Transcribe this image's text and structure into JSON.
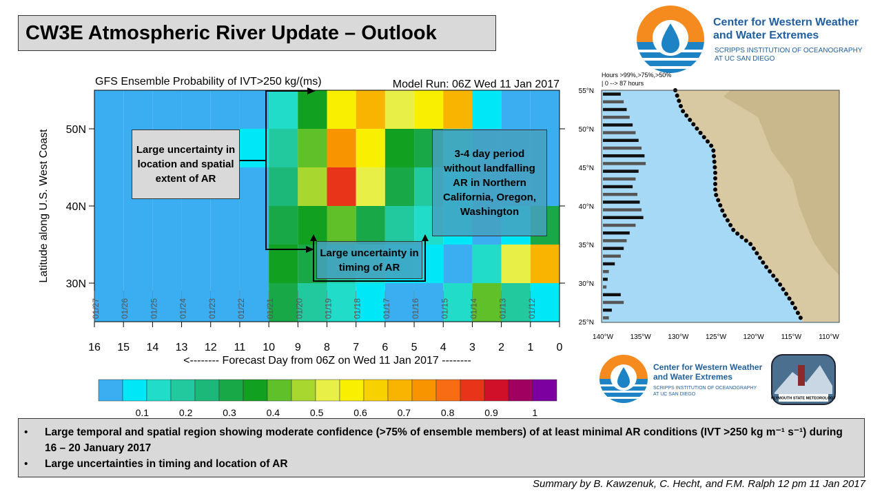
{
  "header": {
    "title": "CW3E Atmospheric River Update – Outlook"
  },
  "logo": {
    "name_line1": "Center for Western Weather",
    "name_line2": "and Water Extremes",
    "sub_line1": "SCRIPPS INSTITUTION OF OCEANOGRAPHY",
    "sub_line2": "AT UC SAN DIEGO"
  },
  "logo2": {
    "name_line1": "Center for Western Weather",
    "name_line2": "and Water Extremes",
    "sub_line1": "SCRIPPS INSTITUTION OF OCEANOGRAPHY",
    "sub_line2": "AT UC SAN DIEGO"
  },
  "psu_logo": {
    "text": "PLYMOUTH STATE METEOROLOGY"
  },
  "chart_data": {
    "type": "heatmap",
    "title": "GFS Ensemble Probability of IVT>250 kg/(ms)",
    "subtitle": "Model Run: 06Z Wed 11 Jan 2017",
    "x_label": "<-------- Forecast Day from 06Z on Wed 11 Jan 2017 --------",
    "y_label": "Latitude along U.S. West Coast",
    "xlim": [
      16,
      0
    ],
    "xticks": [
      16,
      15,
      14,
      13,
      12,
      11,
      10,
      9,
      8,
      7,
      6,
      5,
      4,
      3,
      2,
      1,
      0
    ],
    "ylim": [
      25,
      55
    ],
    "yticks": [
      {
        "value": 30,
        "label": "30N"
      },
      {
        "value": 40,
        "label": "40N"
      },
      {
        "value": 50,
        "label": "50N"
      }
    ],
    "date_labels": [
      {
        "value": 16,
        "label": "01/27"
      },
      {
        "value": 15,
        "label": "01/26"
      },
      {
        "value": 14,
        "label": "01/25"
      },
      {
        "value": 13,
        "label": "01/24"
      },
      {
        "value": 12,
        "label": "01/23"
      },
      {
        "value": 11,
        "label": "01/22"
      },
      {
        "value": 10,
        "label": "01/21"
      },
      {
        "value": 9,
        "label": "01/20"
      },
      {
        "value": 8,
        "label": "01/19"
      },
      {
        "value": 7,
        "label": "01/18"
      },
      {
        "value": 6,
        "label": "01/17"
      },
      {
        "value": 5,
        "label": "01/16"
      },
      {
        "value": 4,
        "label": "01/15"
      },
      {
        "value": 3,
        "label": "01/14"
      },
      {
        "value": 2,
        "label": "01/13"
      },
      {
        "value": 1,
        "label": "01/12"
      }
    ],
    "x_edges": [
      16,
      15,
      14,
      13,
      12,
      11,
      10,
      9,
      8,
      7,
      6,
      5,
      4,
      3,
      2,
      1,
      0
    ],
    "y_edges": [
      55,
      50,
      45,
      40,
      35,
      30,
      25
    ],
    "z": [
      [
        0.05,
        0.05,
        0.05,
        0.05,
        0.05,
        0.05,
        0.15,
        0.35,
        0.6,
        0.7,
        0.55,
        0.6,
        0.7,
        0.1,
        0.05,
        0.05
      ],
      [
        0.05,
        0.05,
        0.05,
        0.05,
        0.05,
        0.1,
        0.2,
        0.4,
        0.75,
        0.6,
        0.35,
        0.3,
        0.15,
        0.05,
        0.05,
        0.05
      ],
      [
        0.05,
        0.05,
        0.05,
        0.05,
        0.05,
        0.05,
        0.25,
        0.45,
        0.85,
        0.55,
        0.3,
        0.2,
        0.1,
        0.05,
        0.05,
        0.05
      ],
      [
        0.05,
        0.05,
        0.05,
        0.05,
        0.05,
        0.05,
        0.3,
        0.35,
        0.4,
        0.3,
        0.2,
        0.15,
        0.1,
        0.05,
        0.1,
        0.3
      ],
      [
        0.05,
        0.05,
        0.05,
        0.05,
        0.05,
        0.05,
        0.35,
        0.3,
        0.2,
        0.15,
        0.1,
        0.1,
        0.05,
        0.15,
        0.5,
        0.7
      ],
      [
        0.05,
        0.05,
        0.05,
        0.05,
        0.05,
        0.05,
        0.3,
        0.2,
        0.15,
        0.1,
        0.05,
        0.05,
        0.15,
        0.4,
        0.2,
        0.1
      ]
    ],
    "colorscale": [
      "#3aaef0",
      "#00e8f8",
      "#20dcc8",
      "#22c89e",
      "#1cb87a",
      "#18a848",
      "#12a020",
      "#60c02a",
      "#a8d830",
      "#e8f048",
      "#f8f000",
      "#f8d200",
      "#f8b400",
      "#f89400",
      "#f86c14",
      "#e83418",
      "#d01028",
      "#a00060",
      "#7c00a0"
    ],
    "clim": [
      0,
      1.05
    ],
    "colorbar_ticks": [
      0.1,
      0.2,
      0.3,
      0.4,
      0.5,
      0.6,
      0.7,
      0.8,
      0.9,
      1
    ]
  },
  "map": {
    "legend_line1": "Hours >99%,>75%,>50%",
    "legend_line2": "| 0 --> 87 hours",
    "hours_max": 87,
    "lat_labels": [
      "55°N",
      "50°N",
      "45°N",
      "40°N",
      "35°N",
      "30°N",
      "25°N"
    ],
    "lon_labels": [
      "140°W",
      "135°W",
      "130°W",
      "125°W",
      "120°W",
      "115°W",
      "110°W"
    ],
    "hours": [
      30,
      35,
      40,
      45,
      50,
      55,
      60,
      65,
      70,
      72,
      60,
      55,
      50,
      58,
      62,
      65,
      68,
      55,
      45,
      40,
      35,
      30,
      20,
      10,
      8,
      6,
      30,
      35,
      15,
      10
    ]
  },
  "annotations": [
    "Large uncertainty in location and spatial extent of AR",
    "Large uncertainty in timing of AR",
    "3-4 day period without landfalling AR in Northern California, Oregon, Washington"
  ],
  "bullets": [
    "Large temporal and spatial region showing moderate confidence (>75% of ensemble members) of at least minimal AR conditions (IVT >250 kg m⁻¹ s⁻¹)  during 16 – 20 January 2017",
    "Large uncertainties in timing and location of AR"
  ],
  "footer": {
    "credit": "Summary by B. Kawzenuk, C. Hecht, and F.M. Ralph 12 pm 11 Jan 2017"
  }
}
